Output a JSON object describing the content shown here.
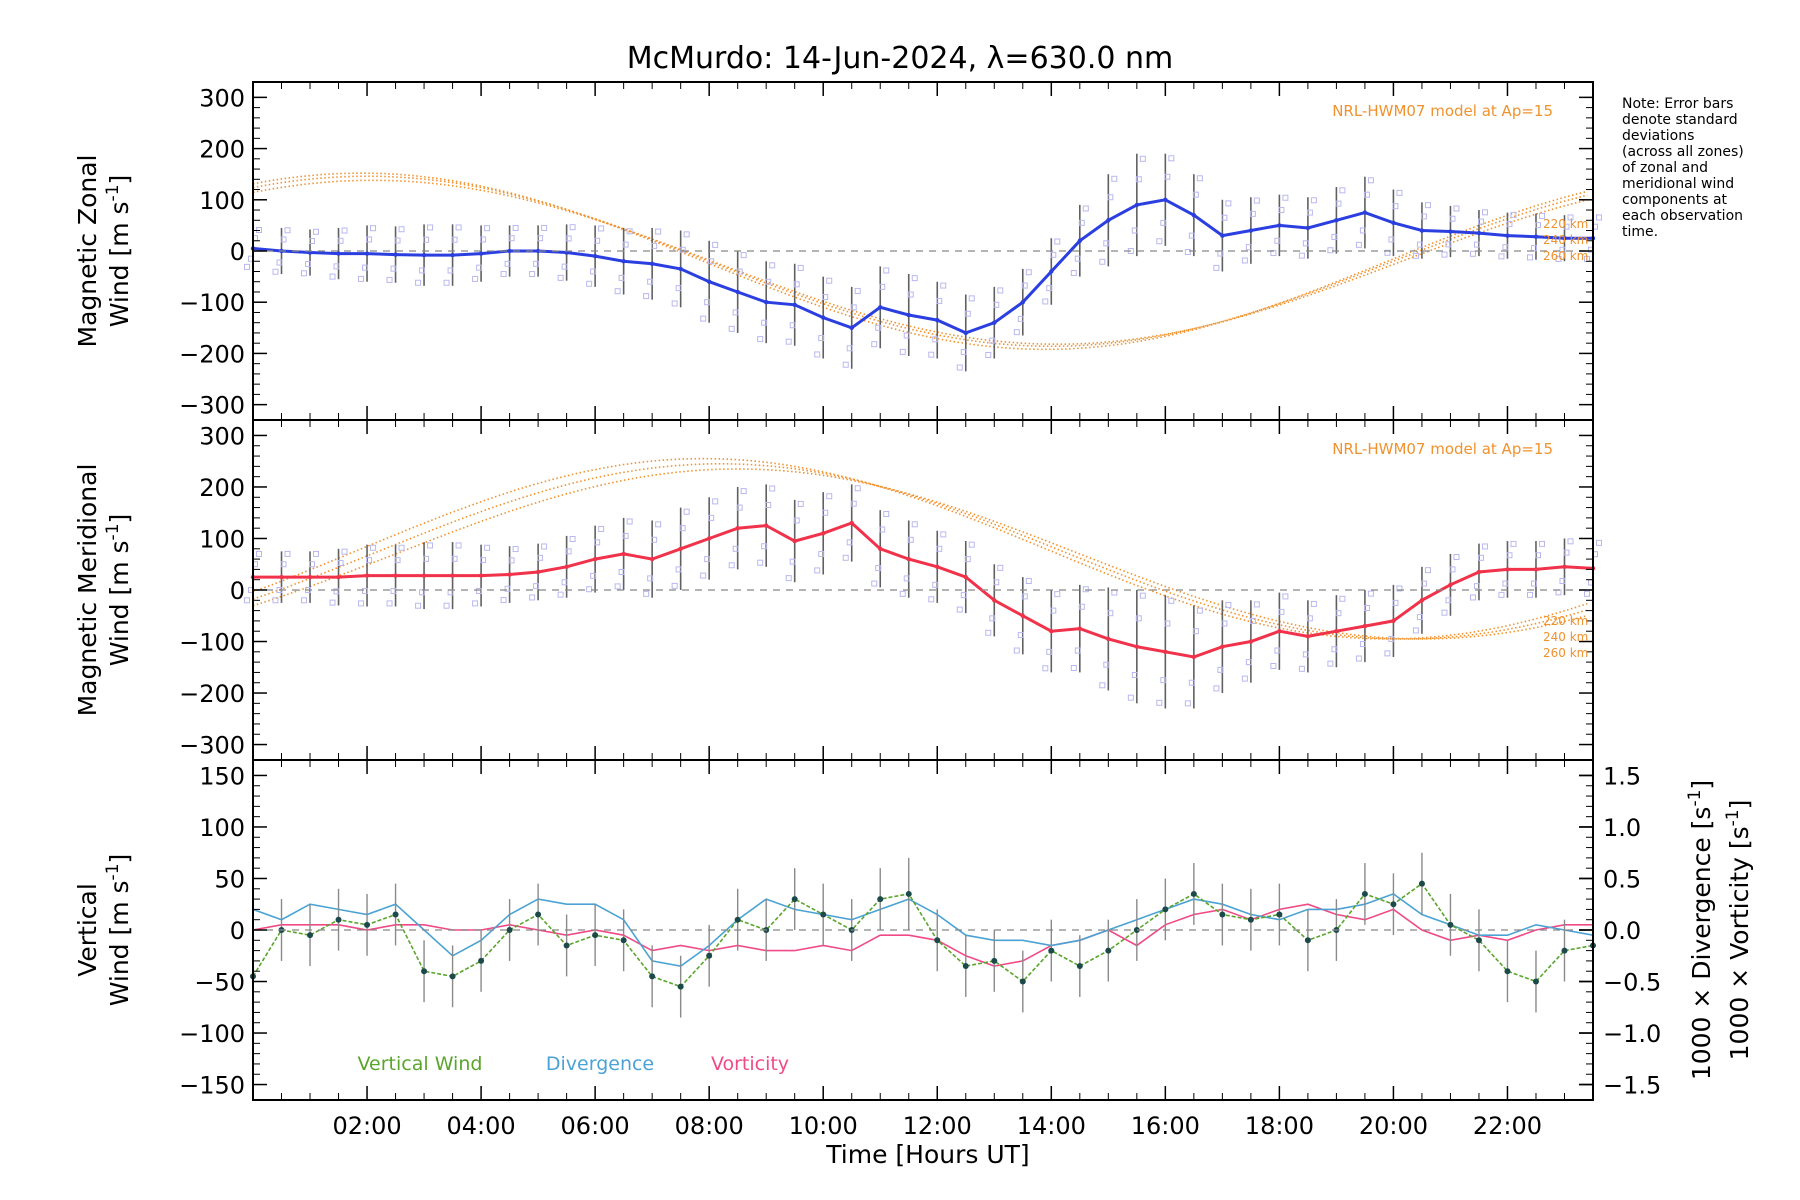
{
  "title": "McMurdo: 14-Jun-2024, λ=630.0 nm",
  "note": [
    "Note: Error bars",
    "denote standard",
    "deviations",
    "(across all zones)",
    "of zonal and",
    "meridional wind",
    "components at",
    "each observation",
    "time."
  ],
  "xaxis": {
    "label": "Time [Hours UT]",
    "range": [
      0.0,
      23.5
    ],
    "ticks": [
      2,
      4,
      6,
      8,
      10,
      12,
      14,
      16,
      18,
      20,
      22
    ],
    "tick_labels": [
      "02:00",
      "04:00",
      "06:00",
      "08:00",
      "10:00",
      "12:00",
      "14:00",
      "16:00",
      "18:00",
      "20:00",
      "22:00"
    ]
  },
  "colors": {
    "zonal": "#2b3fe0",
    "meridional": "#f0324a",
    "vertical": "#5aa52d",
    "divergence": "#4aa3d4",
    "vorticity": "#f04a86",
    "model": "#f0922e",
    "errorbar": "#606060"
  },
  "chart_data": [
    {
      "type": "line",
      "panel": "zonal",
      "ylabel": [
        "Magnetic Zonal",
        "Wind [m s",
        "-1",
        "]"
      ],
      "ylim": [
        -330,
        330
      ],
      "yticks": [
        -300,
        -200,
        -100,
        0,
        100,
        200,
        300
      ],
      "model_label": "NRL-HWM07 model at Ap=15",
      "altitude_labels": [
        "220 km",
        "240 km",
        "260 km"
      ],
      "model_curves": [
        {
          "mean": -20,
          "amp": 172,
          "peak_hour": 1.9
        },
        {
          "mean": -20,
          "amp": 166,
          "peak_hour": 2.0
        },
        {
          "mean": -22,
          "amp": 160,
          "peak_hour": 2.1
        }
      ],
      "x": [
        0.0,
        0.5,
        1.0,
        1.5,
        2.0,
        2.5,
        3.0,
        3.5,
        4.0,
        4.5,
        5.0,
        5.5,
        6.0,
        6.5,
        7.0,
        7.5,
        8.0,
        8.5,
        9.0,
        9.5,
        10.0,
        10.5,
        11.0,
        11.5,
        12.0,
        12.5,
        13.0,
        13.5,
        14.0,
        14.5,
        15.0,
        15.5,
        16.0,
        16.5,
        17.0,
        17.5,
        18.0,
        18.5,
        19.0,
        19.5,
        20.0,
        20.5,
        21.0,
        21.5,
        22.0,
        22.5,
        23.0,
        23.5
      ],
      "values": [
        5,
        0,
        -3,
        -5,
        -5,
        -7,
        -8,
        -8,
        -5,
        0,
        0,
        -3,
        -10,
        -20,
        -25,
        -35,
        -60,
        -80,
        -100,
        -105,
        -130,
        -150,
        -110,
        -125,
        -135,
        -160,
        -140,
        -100,
        -40,
        20,
        60,
        90,
        100,
        70,
        30,
        40,
        50,
        45,
        60,
        75,
        55,
        40,
        38,
        35,
        30,
        28,
        25,
        25
      ],
      "errors": [
        40,
        45,
        45,
        50,
        55,
        55,
        60,
        60,
        55,
        50,
        50,
        55,
        60,
        65,
        70,
        75,
        80,
        80,
        80,
        80,
        80,
        80,
        80,
        80,
        75,
        75,
        70,
        65,
        65,
        70,
        90,
        100,
        90,
        80,
        70,
        65,
        60,
        60,
        65,
        70,
        65,
        55,
        50,
        45,
        45,
        45,
        45,
        45
      ]
    },
    {
      "type": "line",
      "panel": "meridional",
      "ylabel": [
        "Magnetic Meridional",
        "Wind [m s",
        "-1",
        "]"
      ],
      "ylim": [
        -330,
        330
      ],
      "yticks": [
        -300,
        -200,
        -100,
        0,
        100,
        200,
        300
      ],
      "model_label": "NRL-HWM07 model at Ap=15",
      "altitude_labels": [
        "220 km",
        "240 km",
        "260 km"
      ],
      "model_curves": [
        {
          "mean": 80,
          "amp": 175,
          "peak_hour": 7.9
        },
        {
          "mean": 75,
          "amp": 170,
          "peak_hour": 8.2
        },
        {
          "mean": 70,
          "amp": 165,
          "peak_hour": 8.5
        }
      ],
      "x": [
        0.0,
        0.5,
        1.0,
        1.5,
        2.0,
        2.5,
        3.0,
        3.5,
        4.0,
        4.5,
        5.0,
        5.5,
        6.0,
        6.5,
        7.0,
        7.5,
        8.0,
        8.5,
        9.0,
        9.5,
        10.0,
        10.5,
        11.0,
        11.5,
        12.0,
        12.5,
        13.0,
        13.5,
        14.0,
        14.5,
        15.0,
        15.5,
        16.0,
        16.5,
        17.0,
        17.5,
        18.0,
        18.5,
        19.0,
        19.5,
        20.0,
        20.5,
        21.0,
        21.5,
        22.0,
        22.5,
        23.0,
        23.5
      ],
      "values": [
        25,
        25,
        25,
        25,
        28,
        28,
        28,
        28,
        28,
        30,
        35,
        45,
        60,
        70,
        60,
        80,
        100,
        120,
        125,
        95,
        110,
        130,
        80,
        60,
        45,
        25,
        -20,
        -50,
        -80,
        -75,
        -95,
        -110,
        -120,
        -130,
        -110,
        -100,
        -80,
        -90,
        -80,
        -70,
        -60,
        -20,
        10,
        35,
        40,
        40,
        45,
        42
      ],
      "errors": [
        50,
        50,
        50,
        55,
        60,
        60,
        65,
        65,
        60,
        55,
        55,
        60,
        65,
        70,
        75,
        80,
        80,
        80,
        80,
        80,
        80,
        75,
        75,
        75,
        70,
        70,
        70,
        75,
        80,
        85,
        100,
        110,
        110,
        100,
        90,
        80,
        75,
        70,
        70,
        70,
        70,
        65,
        60,
        55,
        55,
        55,
        55,
        55
      ]
    },
    {
      "type": "line",
      "panel": "vertical",
      "ylabel": [
        "Vertical",
        "Wind [m s",
        "-1",
        "]"
      ],
      "ylim": [
        -165,
        165
      ],
      "yticks": [
        -150,
        -100,
        -50,
        0,
        50,
        100,
        150
      ],
      "y2": {
        "ylim": [
          -1.65,
          1.65
        ],
        "ticks": [
          -1.5,
          -1.0,
          -0.5,
          0.0,
          0.5,
          1.0,
          1.5
        ],
        "tick_labels": [
          "−1.5",
          "−1.0",
          "−0.5",
          "0.0",
          "0.5",
          "1.0",
          "1.5"
        ],
        "label_divergence": [
          "1000 × Divergence [s",
          "-1",
          "]"
        ],
        "label_vorticity": [
          "1000 × Vorticity [s",
          "-1",
          "]"
        ]
      },
      "legend": [
        "Vertical Wind",
        "Divergence",
        "Vorticity"
      ],
      "series": [
        {
          "name": "Vertical Wind",
          "x": [
            0.0,
            0.5,
            1.0,
            1.5,
            2.0,
            2.5,
            3.0,
            3.5,
            4.0,
            4.5,
            5.0,
            5.5,
            6.0,
            6.5,
            7.0,
            7.5,
            8.0,
            8.5,
            9.0,
            9.5,
            10.0,
            10.5,
            11.0,
            11.5,
            12.0,
            12.5,
            13.0,
            13.5,
            14.0,
            14.5,
            15.0,
            15.5,
            16.0,
            16.5,
            17.0,
            17.5,
            18.0,
            18.5,
            19.0,
            19.5,
            20.0,
            20.5,
            21.0,
            21.5,
            22.0,
            22.5,
            23.0,
            23.5
          ],
          "values": [
            -45,
            0,
            -5,
            10,
            5,
            15,
            -40,
            -45,
            -30,
            0,
            15,
            -15,
            -5,
            -10,
            -45,
            -55,
            -25,
            10,
            0,
            30,
            15,
            0,
            30,
            35,
            -10,
            -35,
            -30,
            -50,
            -20,
            -35,
            -20,
            0,
            20,
            35,
            15,
            10,
            15,
            -10,
            0,
            35,
            25,
            45,
            5,
            -10,
            -40,
            -50,
            -20,
            -15
          ],
          "errors": [
            30,
            30,
            30,
            30,
            30,
            30,
            30,
            30,
            30,
            30,
            30,
            30,
            30,
            30,
            30,
            30,
            30,
            30,
            30,
            30,
            30,
            30,
            30,
            35,
            30,
            30,
            30,
            30,
            30,
            30,
            30,
            30,
            30,
            30,
            30,
            30,
            30,
            30,
            30,
            30,
            30,
            30,
            30,
            30,
            30,
            30,
            30,
            30
          ]
        },
        {
          "name": "Divergence",
          "x": [
            0.0,
            0.5,
            1.0,
            1.5,
            2.0,
            2.5,
            3.0,
            3.5,
            4.0,
            4.5,
            5.0,
            5.5,
            6.0,
            6.5,
            7.0,
            7.5,
            8.0,
            8.5,
            9.0,
            9.5,
            10.0,
            10.5,
            11.0,
            11.5,
            12.0,
            12.5,
            13.0,
            13.5,
            14.0,
            14.5,
            15.0,
            15.5,
            16.0,
            16.5,
            17.0,
            17.5,
            18.0,
            18.5,
            19.0,
            19.5,
            20.0,
            20.5,
            21.0,
            21.5,
            22.0,
            22.5,
            23.0,
            23.5
          ],
          "values": [
            0.2,
            0.1,
            0.25,
            0.2,
            0.15,
            0.25,
            0.0,
            -0.25,
            -0.1,
            0.15,
            0.3,
            0.25,
            0.25,
            0.1,
            -0.3,
            -0.35,
            -0.15,
            0.1,
            0.3,
            0.2,
            0.15,
            0.1,
            0.2,
            0.3,
            0.15,
            -0.05,
            -0.1,
            -0.1,
            -0.15,
            -0.1,
            0.0,
            0.1,
            0.2,
            0.3,
            0.25,
            0.15,
            0.1,
            0.2,
            0.2,
            0.25,
            0.35,
            0.15,
            0.05,
            -0.05,
            -0.05,
            0.05,
            0.0,
            -0.05
          ]
        },
        {
          "name": "Vorticity",
          "x": [
            0.0,
            0.5,
            1.0,
            1.5,
            2.0,
            2.5,
            3.0,
            3.5,
            4.0,
            4.5,
            5.0,
            5.5,
            6.0,
            6.5,
            7.0,
            7.5,
            8.0,
            8.5,
            9.0,
            9.5,
            10.0,
            10.5,
            11.0,
            11.5,
            12.0,
            12.5,
            13.0,
            13.5,
            14.0,
            14.5,
            15.0,
            15.5,
            16.0,
            16.5,
            17.0,
            17.5,
            18.0,
            18.5,
            19.0,
            19.5,
            20.0,
            20.5,
            21.0,
            21.5,
            22.0,
            22.5,
            23.0,
            23.5
          ],
          "values": [
            0.0,
            0.05,
            0.05,
            0.05,
            0.0,
            0.05,
            0.05,
            0.0,
            0.0,
            0.05,
            0.0,
            -0.05,
            0.0,
            -0.05,
            -0.2,
            -0.15,
            -0.2,
            -0.15,
            -0.2,
            -0.2,
            -0.15,
            -0.2,
            -0.05,
            -0.05,
            -0.1,
            -0.25,
            -0.35,
            -0.3,
            -0.15,
            -0.1,
            0.0,
            -0.15,
            0.05,
            0.15,
            0.2,
            0.1,
            0.2,
            0.25,
            0.15,
            0.1,
            0.2,
            0.0,
            -0.1,
            -0.05,
            -0.1,
            0.0,
            0.05,
            0.05
          ]
        }
      ]
    }
  ]
}
